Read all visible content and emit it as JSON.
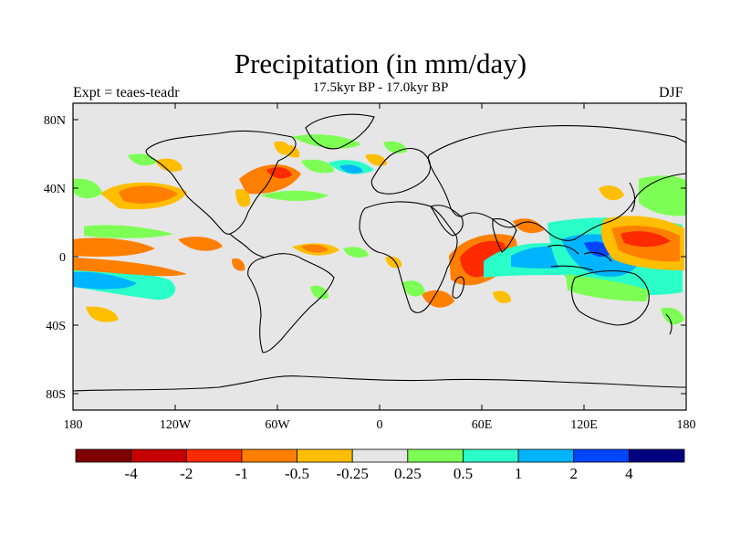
{
  "title": "Precipitation (in mm/day)",
  "subtitle": "17.5kyr BP - 17.0kyr BP",
  "left_label": "Expt = teaes-teadr",
  "right_label": "DJF",
  "map": {
    "background_color": "#e6e6e6",
    "lon_ticks": [
      "180",
      "120W",
      "60W",
      "0",
      "60E",
      "120E",
      "180"
    ],
    "lat_ticks": [
      "80N",
      "40N",
      "0",
      "40S",
      "80S"
    ]
  },
  "colorbar": {
    "colors": [
      "#7f0000",
      "#c60000",
      "#ff2a00",
      "#ff7f00",
      "#ffbe00",
      "#e6e6e6",
      "#7dff55",
      "#2affc9",
      "#00b4ff",
      "#0045ff",
      "#00007f"
    ],
    "labels": [
      "-4",
      "-2",
      "-1",
      "-0.5",
      "-0.25",
      "0.25",
      "0.5",
      "1",
      "2",
      "4"
    ]
  }
}
